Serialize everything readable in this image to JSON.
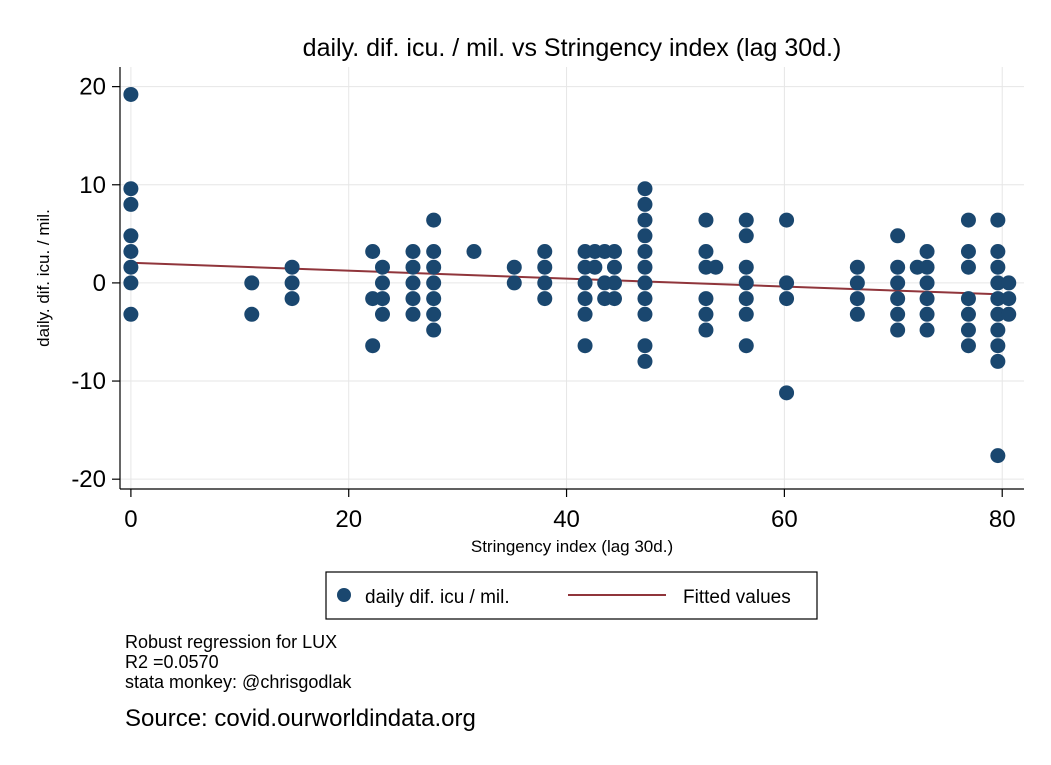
{
  "chart_data": {
    "type": "scatter",
    "title": "daily. dif. icu. / mil. vs Stringency index (lag 30d.)",
    "xlabel": "Stringency index (lag 30d.)",
    "ylabel": "daily. dif. icu. / mil.",
    "xlim": [
      -1,
      82
    ],
    "ylim": [
      -21,
      22
    ],
    "x_ticks": [
      0,
      20,
      40,
      60,
      80
    ],
    "y_ticks": [
      20,
      10,
      0,
      -10,
      -20
    ],
    "grid": true,
    "legend_position": "bottom",
    "series": [
      {
        "name": "daily dif. icu / mil.",
        "kind": "scatter",
        "color": "#1a476f",
        "points": [
          [
            0,
            19.2
          ],
          [
            0,
            9.6
          ],
          [
            0,
            8.0
          ],
          [
            0,
            4.8
          ],
          [
            0,
            3.2
          ],
          [
            0,
            1.6
          ],
          [
            0,
            0
          ],
          [
            0,
            -3.2
          ],
          [
            11.1,
            0
          ],
          [
            11.1,
            -3.2
          ],
          [
            14.8,
            1.6
          ],
          [
            14.8,
            0
          ],
          [
            14.8,
            -1.6
          ],
          [
            22.2,
            3.2
          ],
          [
            22.2,
            -1.6
          ],
          [
            22.2,
            -6.4
          ],
          [
            23.1,
            1.6
          ],
          [
            23.1,
            0
          ],
          [
            23.1,
            -1.6
          ],
          [
            23.1,
            -3.2
          ],
          [
            25.9,
            3.2
          ],
          [
            25.9,
            1.6
          ],
          [
            25.9,
            0
          ],
          [
            25.9,
            -1.6
          ],
          [
            25.9,
            -3.2
          ],
          [
            27.8,
            6.4
          ],
          [
            27.8,
            3.2
          ],
          [
            27.8,
            1.6
          ],
          [
            27.8,
            0
          ],
          [
            27.8,
            -1.6
          ],
          [
            27.8,
            -3.2
          ],
          [
            27.8,
            -4.8
          ],
          [
            31.5,
            3.2
          ],
          [
            35.2,
            1.6
          ],
          [
            35.2,
            0
          ],
          [
            38.0,
            3.2
          ],
          [
            38.0,
            1.6
          ],
          [
            38.0,
            0
          ],
          [
            38.0,
            -1.6
          ],
          [
            41.7,
            3.2
          ],
          [
            41.7,
            1.6
          ],
          [
            41.7,
            0
          ],
          [
            41.7,
            -1.6
          ],
          [
            41.7,
            -3.2
          ],
          [
            41.7,
            -6.4
          ],
          [
            42.6,
            3.2
          ],
          [
            42.6,
            1.6
          ],
          [
            43.5,
            3.2
          ],
          [
            43.5,
            0
          ],
          [
            43.5,
            -1.6
          ],
          [
            44.4,
            3.2
          ],
          [
            44.4,
            1.6
          ],
          [
            44.4,
            0
          ],
          [
            44.4,
            -1.6
          ],
          [
            47.2,
            9.6
          ],
          [
            47.2,
            8.0
          ],
          [
            47.2,
            6.4
          ],
          [
            47.2,
            4.8
          ],
          [
            47.2,
            3.2
          ],
          [
            47.2,
            1.6
          ],
          [
            47.2,
            0
          ],
          [
            47.2,
            -1.6
          ],
          [
            47.2,
            -3.2
          ],
          [
            47.2,
            -6.4
          ],
          [
            47.2,
            -8.0
          ],
          [
            52.8,
            6.4
          ],
          [
            52.8,
            3.2
          ],
          [
            52.8,
            1.6
          ],
          [
            52.8,
            -1.6
          ],
          [
            52.8,
            -3.2
          ],
          [
            52.8,
            -4.8
          ],
          [
            53.7,
            1.6
          ],
          [
            56.5,
            6.4
          ],
          [
            56.5,
            4.8
          ],
          [
            56.5,
            1.6
          ],
          [
            56.5,
            0
          ],
          [
            56.5,
            -1.6
          ],
          [
            56.5,
            -3.2
          ],
          [
            56.5,
            -6.4
          ],
          [
            60.2,
            6.4
          ],
          [
            60.2,
            0
          ],
          [
            60.2,
            -1.6
          ],
          [
            60.2,
            -11.2
          ],
          [
            66.7,
            1.6
          ],
          [
            66.7,
            0
          ],
          [
            66.7,
            -1.6
          ],
          [
            66.7,
            -3.2
          ],
          [
            70.4,
            4.8
          ],
          [
            70.4,
            1.6
          ],
          [
            70.4,
            0
          ],
          [
            70.4,
            -1.6
          ],
          [
            70.4,
            -3.2
          ],
          [
            70.4,
            -4.8
          ],
          [
            72.2,
            1.6
          ],
          [
            73.1,
            3.2
          ],
          [
            73.1,
            1.6
          ],
          [
            73.1,
            0
          ],
          [
            73.1,
            -1.6
          ],
          [
            73.1,
            -3.2
          ],
          [
            73.1,
            -4.8
          ],
          [
            76.9,
            6.4
          ],
          [
            76.9,
            3.2
          ],
          [
            76.9,
            1.6
          ],
          [
            76.9,
            -1.6
          ],
          [
            76.9,
            -3.2
          ],
          [
            76.9,
            -4.8
          ],
          [
            76.9,
            -6.4
          ],
          [
            79.6,
            6.4
          ],
          [
            79.6,
            3.2
          ],
          [
            79.6,
            1.6
          ],
          [
            79.6,
            0
          ],
          [
            79.6,
            -1.6
          ],
          [
            79.6,
            -3.2
          ],
          [
            79.6,
            -4.8
          ],
          [
            79.6,
            -6.4
          ],
          [
            79.6,
            -8.0
          ],
          [
            79.6,
            -17.6
          ],
          [
            80.6,
            0
          ],
          [
            80.6,
            -1.6
          ],
          [
            80.6,
            -3.2
          ]
        ]
      },
      {
        "name": "Fitted values",
        "kind": "line",
        "color": "#90353b",
        "points": [
          [
            0,
            2.05
          ],
          [
            80.6,
            -1.2
          ]
        ]
      }
    ]
  },
  "notes": {
    "line1": "Robust regression for LUX",
    "line2": "R2 =0.0570",
    "line3": "stata monkey: @chrisgodlak"
  },
  "source": "Source: covid.ourworldindata.org"
}
